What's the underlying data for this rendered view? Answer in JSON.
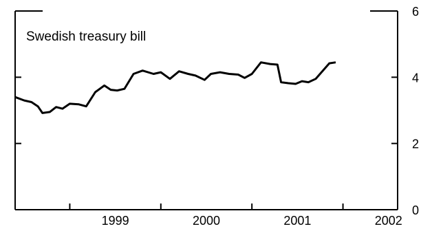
{
  "chart_data": {
    "type": "line",
    "title": "Swedish treasury bill",
    "xlabel": "",
    "ylabel": "",
    "xlim": [
      1998.4,
      2002.6
    ],
    "ylim": [
      0,
      6
    ],
    "x_ticks": [
      1999,
      2000,
      2001,
      2002
    ],
    "x_tick_labels": [
      "1999",
      "2000",
      "2001",
      "2002"
    ],
    "y_ticks": [
      0,
      2,
      4,
      6
    ],
    "y_tick_labels": [
      "0",
      "2",
      "4",
      "6"
    ],
    "y_axis_side": "right",
    "grid": false,
    "legend": "none",
    "series": [
      {
        "color": "#000000",
        "x": [
          1998.4,
          1998.5,
          1998.58,
          1998.65,
          1998.7,
          1998.78,
          1998.85,
          1998.92,
          1999.0,
          1999.1,
          1999.18,
          1999.28,
          1999.38,
          1999.45,
          1999.52,
          1999.6,
          1999.7,
          1999.8,
          1999.92,
          2000.0,
          2000.1,
          2000.2,
          2000.3,
          2000.38,
          2000.48,
          2000.55,
          2000.65,
          2000.75,
          2000.85,
          2000.92,
          2001.0,
          2001.1,
          2001.2,
          2001.28,
          2001.32,
          2001.4,
          2001.48,
          2001.55,
          2001.62,
          2001.7,
          2001.78,
          2001.85,
          2001.92
        ],
        "values": [
          3.4,
          3.3,
          3.25,
          3.12,
          2.92,
          2.95,
          3.1,
          3.05,
          3.2,
          3.18,
          3.12,
          3.55,
          3.75,
          3.62,
          3.6,
          3.65,
          4.1,
          4.2,
          4.1,
          4.15,
          3.95,
          4.18,
          4.1,
          4.05,
          3.92,
          4.1,
          4.15,
          4.1,
          4.08,
          3.98,
          4.1,
          4.45,
          4.4,
          4.38,
          3.85,
          3.82,
          3.8,
          3.88,
          3.85,
          3.95,
          4.2,
          4.42,
          4.45
        ]
      }
    ]
  }
}
